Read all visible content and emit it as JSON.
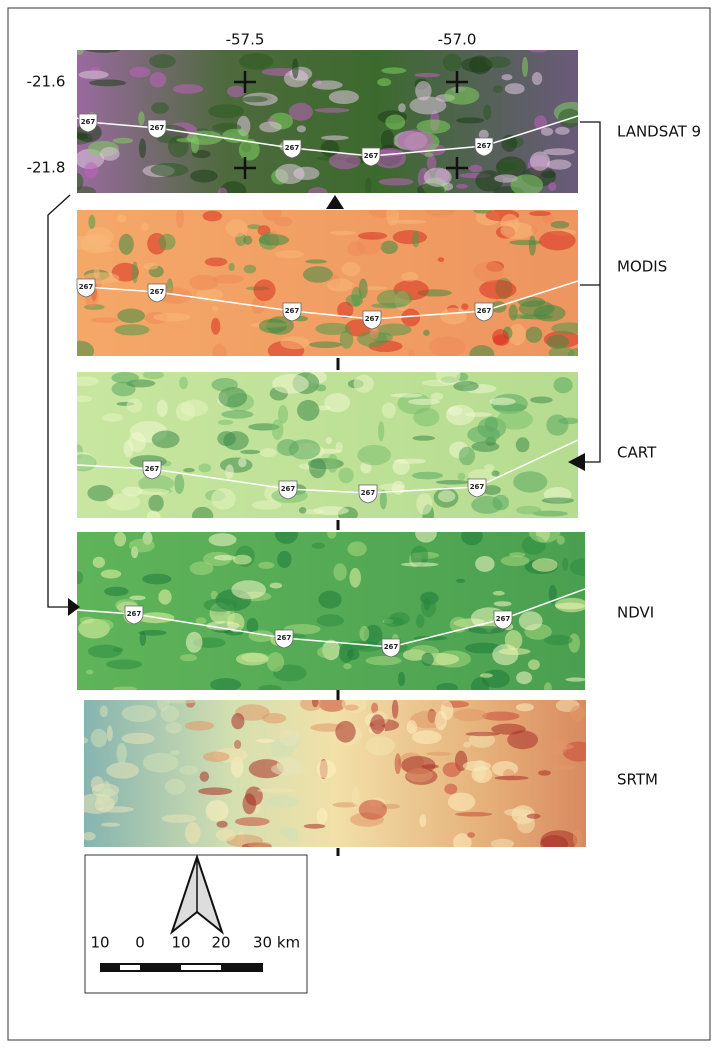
{
  "coordinates": {
    "lon_labels": [
      "-57.5",
      "-57.0"
    ],
    "lat_labels": [
      "-21.6",
      "-21.8"
    ]
  },
  "panels": [
    {
      "label": "LANDSAT 9",
      "shields": [
        "267",
        "267",
        "267",
        "267",
        "267"
      ]
    },
    {
      "label": "MODIS",
      "shields": [
        "267",
        "267",
        "267",
        "267",
        "267"
      ]
    },
    {
      "label": "CART",
      "shields": [
        "267",
        "267",
        "267",
        "267"
      ]
    },
    {
      "label": "NDVI",
      "shields": [
        "267",
        "267",
        "267",
        "267"
      ]
    },
    {
      "label": "SRTM",
      "shields": []
    }
  ],
  "scale_bar": {
    "labels": [
      "10",
      "0",
      "10",
      "20",
      "30 km"
    ]
  }
}
